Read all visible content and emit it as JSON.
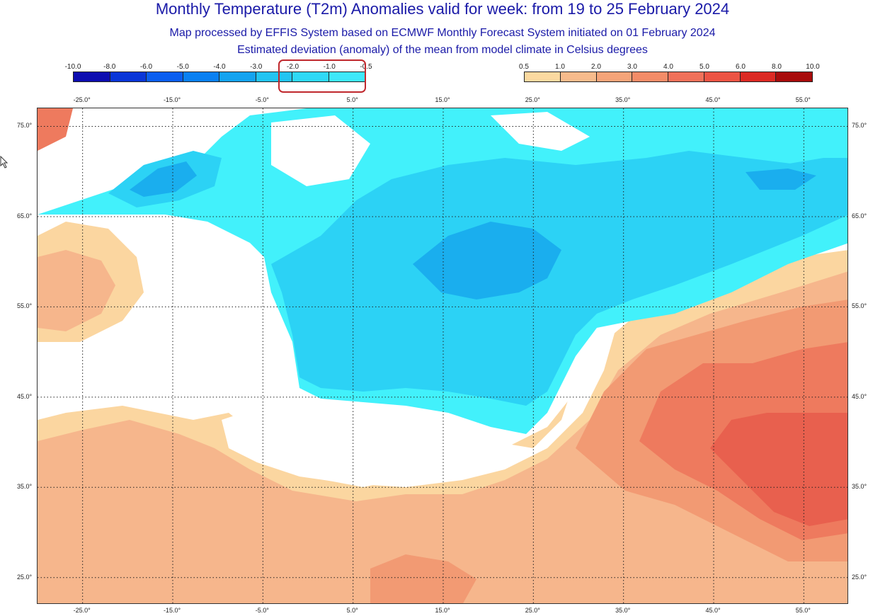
{
  "title": "Monthly Temperature (T2m) Anomalies valid for week: from 19 to 25 February 2024",
  "subtitle_1": "Map processed by EFFIS System based on ECMWF Monthly Forecast System initiated on 01 February 2024",
  "subtitle_2": "Estimated deviation (anomaly) of the mean from model climate in Celsius degrees",
  "legend_negative": {
    "labels": [
      "-10.0",
      "-8.0",
      "-6.0",
      "-5.0",
      "-4.0",
      "-3.0",
      "-2.0",
      "-1.0",
      "-0.5"
    ],
    "colors": [
      "#0d0db0",
      "#0a36d8",
      "#0b5ef0",
      "#0a80f2",
      "#14a3f0",
      "#22c4f2",
      "#2fd9f6",
      "#3ee8fa"
    ]
  },
  "legend_positive": {
    "labels": [
      "0.5",
      "1.0",
      "2.0",
      "3.0",
      "4.0",
      "5.0",
      "6.0",
      "8.0",
      "10.0"
    ],
    "colors": [
      "#fbd9a0",
      "#f7bb8c",
      "#f5a479",
      "#f38c68",
      "#f0715a",
      "#ec5444",
      "#dc2a24",
      "#a80c0c"
    ]
  },
  "longitudes": [
    "-25.0°",
    "-15.0°",
    "-5.0°",
    "5.0°",
    "15.0°",
    "25.0°",
    "35.0°",
    "45.0°",
    "55.0°"
  ],
  "latitudes": [
    "75.0°",
    "65.0°",
    "55.0°",
    "45.0°",
    "35.0°",
    "25.0°"
  ],
  "map": {
    "lon_range": [
      -30,
      60
    ],
    "lat_range": [
      22,
      77
    ],
    "grid_step_lon": 10,
    "grid_step_lat": 10,
    "grid_style": "dotted",
    "anomaly_classes": {
      "cold_weak": "#42f1fb",
      "cold_moderate": "#2cd2f5",
      "cold_strong": "#1aaeee",
      "cold_stronger": "#0f84e6",
      "neutral": "#ffffff",
      "warm_weak": "#fbd6a0",
      "warm_moderate": "#f6b68c",
      "warm_strong": "#f29a73",
      "warm_stronger": "#ee7a5e",
      "warm_strongest": "#e8604e"
    }
  }
}
